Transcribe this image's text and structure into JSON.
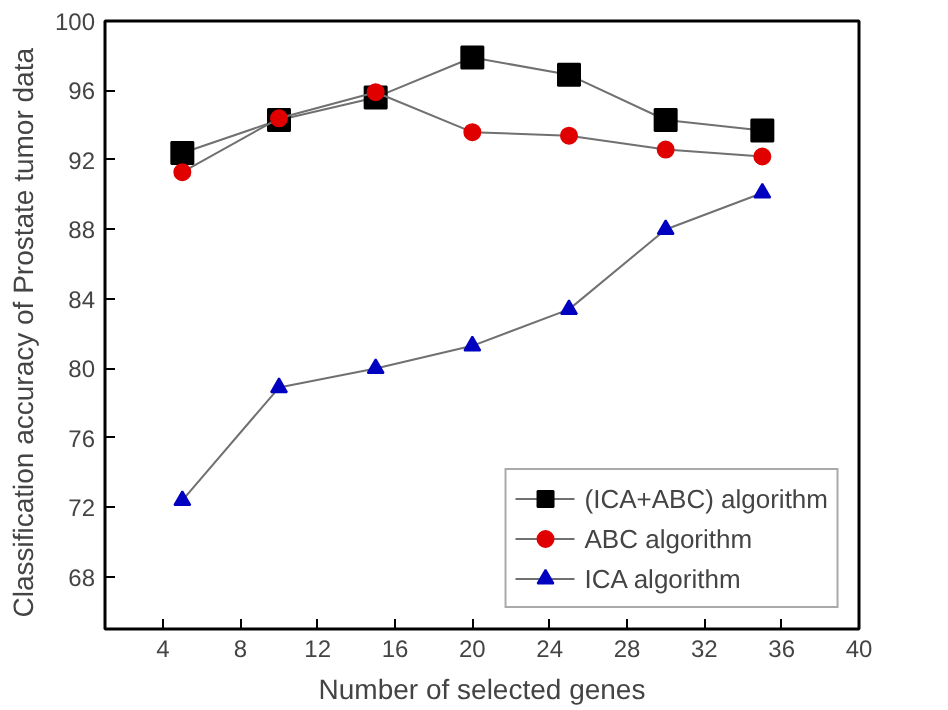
{
  "chart_data": {
    "type": "line",
    "xlabel": "Number of selected genes",
    "ylabel": "Classification accuracy of Prostate tumor   data",
    "x": [
      5,
      10,
      15,
      20,
      25,
      30,
      35
    ],
    "series": [
      {
        "name": "(ICA+ABC) algorithm",
        "color": "#000000",
        "marker": "square",
        "values": [
          92.4,
          94.3,
          95.6,
          97.9,
          96.9,
          94.3,
          93.7
        ]
      },
      {
        "name": "ABC algorithm",
        "color": "#e00000",
        "marker": "circle",
        "values": [
          91.3,
          94.4,
          95.9,
          93.6,
          93.4,
          92.6,
          92.2
        ]
      },
      {
        "name": "ICA algorithm",
        "color": "#0000c0",
        "marker": "triangle",
        "values": [
          72.4,
          78.9,
          80.0,
          81.3,
          83.4,
          88.0,
          90.1
        ]
      }
    ],
    "xlim": [
      1,
      40
    ],
    "xticks": [
      4,
      8,
      12,
      16,
      20,
      24,
      28,
      32,
      36,
      40
    ],
    "ylim": [
      65,
      100
    ],
    "yticks": [
      68,
      72,
      76,
      80,
      84,
      88,
      92,
      96,
      100
    ],
    "grid": false,
    "legend": "bottom right",
    "line_style": "solid"
  }
}
